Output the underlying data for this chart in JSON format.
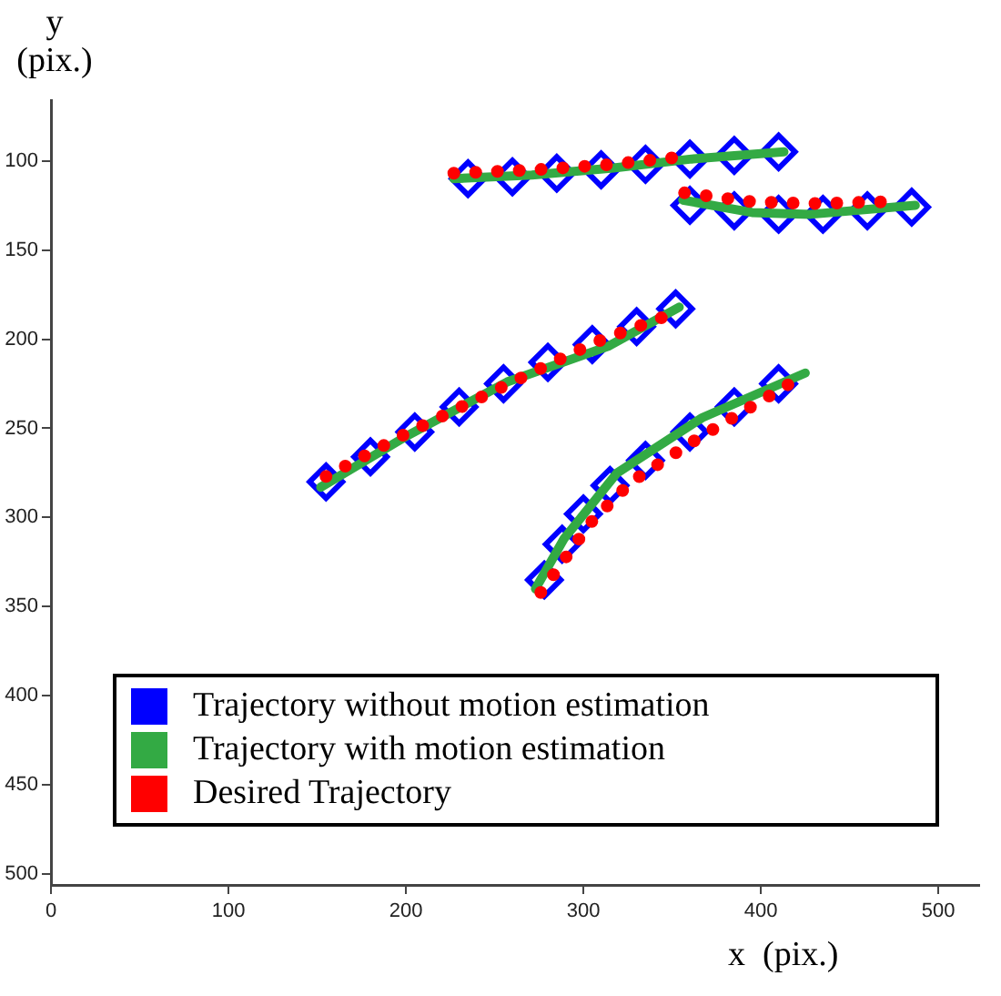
{
  "chart_data": {
    "type": "scatter",
    "xlabel": "x  (pix.)",
    "ylabel": "y (pix.)",
    "xlim": [
      0,
      523
    ],
    "xticks": [
      0,
      100,
      200,
      300,
      400,
      500
    ],
    "ylim": [
      506,
      66
    ],
    "yticks": [
      100,
      150,
      200,
      250,
      300,
      350,
      400,
      450,
      500
    ],
    "grid": false,
    "legend": "bottom left",
    "series": [
      {
        "name": "Trajectory without motion estimation",
        "type": "scatter",
        "marker": "diamond",
        "color": "#0000ff",
        "x": [
          235,
          260,
          285,
          310,
          335,
          360,
          385,
          410,
          360,
          385,
          410,
          435,
          460,
          485,
          155,
          180,
          205,
          230,
          255,
          280,
          305,
          330,
          352,
          278,
          288,
          300,
          315,
          335,
          360,
          385,
          410
        ],
        "values": [
          110,
          109,
          107,
          105,
          102,
          99,
          97,
          95,
          125,
          128,
          130,
          130,
          128,
          126,
          280,
          266,
          252,
          238,
          225,
          213,
          203,
          193,
          183,
          335,
          315,
          298,
          282,
          268,
          252,
          238,
          225
        ]
      },
      {
        "name": "Trajectory with motion estimation",
        "type": "line",
        "line_style": "solid",
        "color": "#33aa44",
        "x": [
          227,
          271,
          317,
          361,
          413,
          null,
          356,
          395,
          428,
          487,
          null,
          152,
          201,
          257,
          314,
          354,
          null,
          273,
          289,
          319,
          367,
          425
        ],
        "values": [
          110,
          108,
          104,
          99,
          95,
          null,
          122,
          129,
          130,
          125,
          null,
          283,
          254,
          224,
          204,
          182,
          null,
          340,
          312,
          275,
          244,
          219
        ]
      },
      {
        "name": "Desired Trajectory",
        "type": "line",
        "line_style": "dotted",
        "color": "#ff0000",
        "x": [
          227,
          274,
          316,
          354,
          null,
          357,
          395,
          428,
          470,
          null,
          155,
          200,
          256,
          306,
          344,
          null,
          276,
          304,
          327,
          364,
          423
        ],
        "values": [
          107,
          105,
          102,
          98,
          null,
          118,
          123,
          124,
          123,
          null,
          277,
          253,
          226,
          202,
          188,
          null,
          342,
          303,
          280,
          256,
          221
        ]
      }
    ]
  }
}
